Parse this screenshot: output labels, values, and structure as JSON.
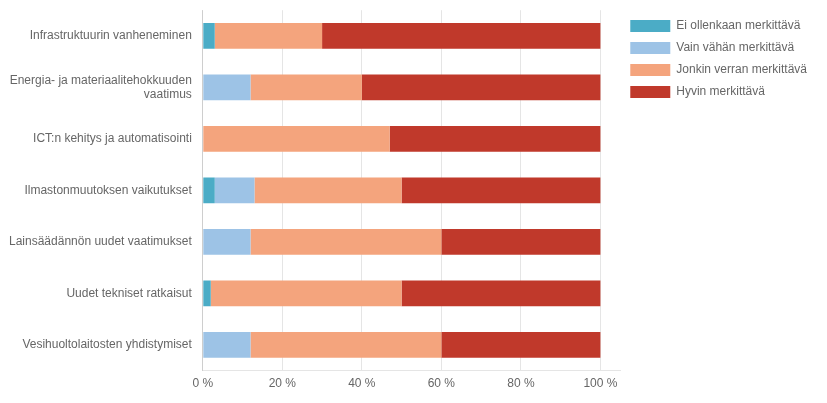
{
  "chart_data": {
    "type": "bar",
    "orientation": "horizontal",
    "stacked": true,
    "categories": [
      "Infrastruktuurin vanheneminen",
      "Energia- ja materiaalitehokkuuden\n      vaatimus",
      "ICT:n kehitys ja automatisointi",
      "Ilmastonmuutoksen vaikutukset",
      "Lainsäädännön uudet vaatimukset",
      "Uudet tekniset ratkaisut",
      "Vesihuoltolaitosten yhdistymiset"
    ],
    "series": [
      {
        "name": "Ei ollenkaan merkittävä",
        "color": "#4BACC6",
        "values": [
          3,
          0,
          0,
          3,
          0,
          2,
          0
        ]
      },
      {
        "name": "Vain vähän merkittävä",
        "color": "#9DC3E6",
        "values": [
          0,
          12,
          0,
          10,
          12,
          0,
          12
        ]
      },
      {
        "name": "Jonkin verran merkittävä",
        "color": "#F4A47D",
        "values": [
          27,
          28,
          47,
          37,
          48,
          48,
          48
        ]
      },
      {
        "name": "Hyvin merkittävä",
        "color": "#C0392B",
        "values": [
          70,
          60,
          53,
          50,
          40,
          50,
          40
        ]
      }
    ],
    "xlim": [
      0,
      105
    ],
    "xticks": [
      {
        "value": 0,
        "label": "0 %"
      },
      {
        "value": 20,
        "label": "20 %"
      },
      {
        "value": 40,
        "label": "40 %"
      },
      {
        "value": 60,
        "label": "60 %"
      },
      {
        "value": 80,
        "label": "80 %"
      },
      {
        "value": 100,
        "label": "100 %"
      }
    ],
    "grid": true,
    "legend": "right"
  }
}
